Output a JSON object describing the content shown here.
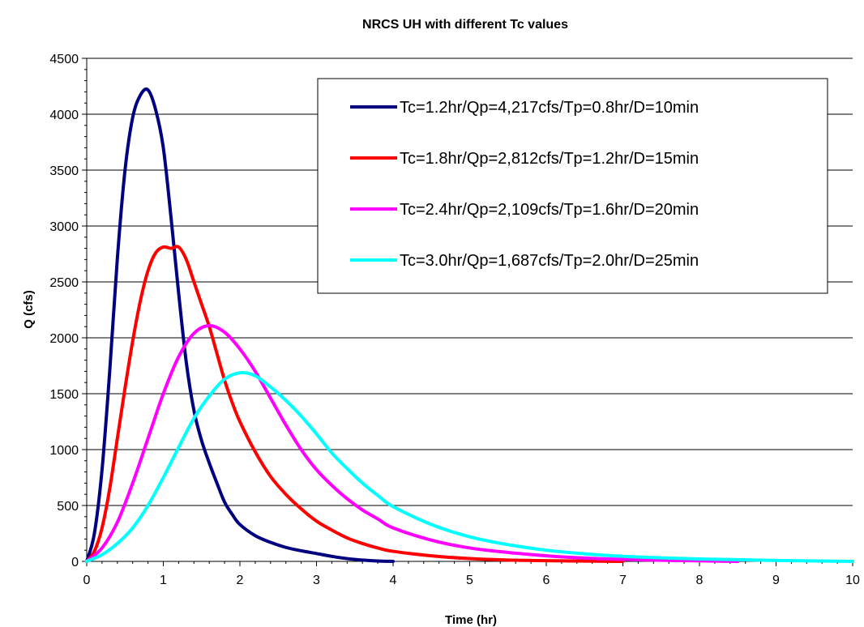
{
  "chart_data": {
    "type": "line",
    "title": "NRCS UH with different Tc values",
    "xlabel": "Time (hr)",
    "ylabel": "Q (cfs)",
    "xlim": [
      0,
      10
    ],
    "ylim": [
      0,
      4500
    ],
    "xticks": [
      0,
      1,
      2,
      3,
      4,
      5,
      6,
      7,
      8,
      9,
      10
    ],
    "yticks": [
      0,
      500,
      1000,
      1500,
      2000,
      2500,
      3000,
      3500,
      4000,
      4500
    ],
    "grid": "horizontal",
    "legend_position": "top-right",
    "series": [
      {
        "name": "Tc=1.2hr/Qp=4,217cfs/Tp=0.8hr/D=10min",
        "color": "#000080",
        "x": [
          0,
          0.1,
          0.2,
          0.3,
          0.4,
          0.5,
          0.6,
          0.7,
          0.8,
          0.9,
          1.0,
          1.1,
          1.2,
          1.3,
          1.4,
          1.5,
          1.6,
          1.7,
          1.8,
          1.9,
          2.0,
          2.2,
          2.4,
          2.6,
          2.8,
          3.0,
          3.2,
          3.4,
          3.6,
          3.8,
          4.0
        ],
        "y": [
          0,
          250,
          820,
          1700,
          2710,
          3500,
          3970,
          4170,
          4217,
          4040,
          3700,
          3080,
          2400,
          1780,
          1350,
          1080,
          880,
          700,
          530,
          420,
          330,
          230,
          170,
          125,
          95,
          70,
          45,
          25,
          12,
          4,
          0
        ]
      },
      {
        "name": "Tc=1.8hr/Qp=2,812cfs/Tp=1.2hr/D=15min",
        "color": "#ff0000",
        "x": [
          0,
          0.1,
          0.2,
          0.3,
          0.4,
          0.5,
          0.6,
          0.7,
          0.8,
          0.9,
          1.0,
          1.1,
          1.2,
          1.3,
          1.4,
          1.5,
          1.6,
          1.7,
          1.8,
          1.9,
          2.0,
          2.2,
          2.4,
          2.6,
          2.8,
          3.0,
          3.2,
          3.4,
          3.6,
          3.8,
          4.0,
          4.5,
          5.0,
          5.5,
          6.0,
          6.5,
          7.0
        ],
        "y": [
          0,
          90,
          300,
          650,
          1100,
          1550,
          1970,
          2330,
          2600,
          2760,
          2812,
          2800,
          2812,
          2700,
          2500,
          2300,
          2100,
          1860,
          1620,
          1420,
          1250,
          980,
          760,
          600,
          470,
          360,
          280,
          210,
          160,
          120,
          90,
          50,
          25,
          12,
          6,
          3,
          0
        ]
      },
      {
        "name": "Tc=2.4hr/Qp=2,109cfs/Tp=1.6hr/D=20min",
        "color": "#ff00ff",
        "x": [
          0,
          0.2,
          0.4,
          0.6,
          0.8,
          1.0,
          1.2,
          1.4,
          1.6,
          1.8,
          2.0,
          2.2,
          2.4,
          2.6,
          2.8,
          3.0,
          3.2,
          3.4,
          3.6,
          3.8,
          4.0,
          4.5,
          5.0,
          5.5,
          6.0,
          6.5,
          7.0,
          7.5,
          8.0,
          8.5
        ],
        "y": [
          0,
          120,
          350,
          700,
          1100,
          1500,
          1830,
          2040,
          2109,
          2050,
          1900,
          1700,
          1460,
          1220,
          1000,
          820,
          680,
          560,
          460,
          380,
          300,
          190,
          120,
          80,
          50,
          30,
          18,
          10,
          5,
          0
        ]
      },
      {
        "name": "Tc=3.0hr/Qp=1,687cfs/Tp=2.0hr/D=25min",
        "color": "#00ffff",
        "x": [
          0,
          0.2,
          0.4,
          0.6,
          0.8,
          1.0,
          1.2,
          1.4,
          1.6,
          1.8,
          2.0,
          2.2,
          2.4,
          2.6,
          2.8,
          3.0,
          3.2,
          3.4,
          3.6,
          3.8,
          4.0,
          4.5,
          5.0,
          5.5,
          6.0,
          6.5,
          7.0,
          7.5,
          8.0,
          8.5,
          9.0,
          9.5,
          10.0
        ],
        "y": [
          0,
          60,
          160,
          300,
          500,
          750,
          1020,
          1280,
          1480,
          1630,
          1687,
          1660,
          1560,
          1440,
          1300,
          1140,
          970,
          830,
          700,
          590,
          490,
          330,
          220,
          150,
          100,
          68,
          45,
          32,
          22,
          15,
          8,
          4,
          0
        ]
      }
    ]
  }
}
